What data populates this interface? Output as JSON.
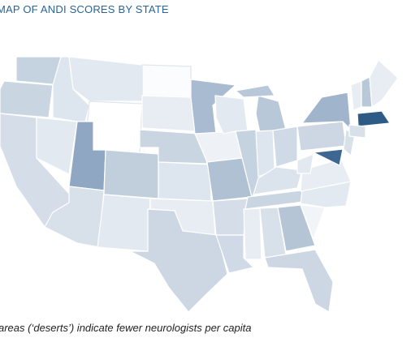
{
  "header": {
    "title": "MAP OF ANDI SCORES BY STATE"
  },
  "caption": "areas (‘deserts’) indicate fewer neurologists per capita"
}
